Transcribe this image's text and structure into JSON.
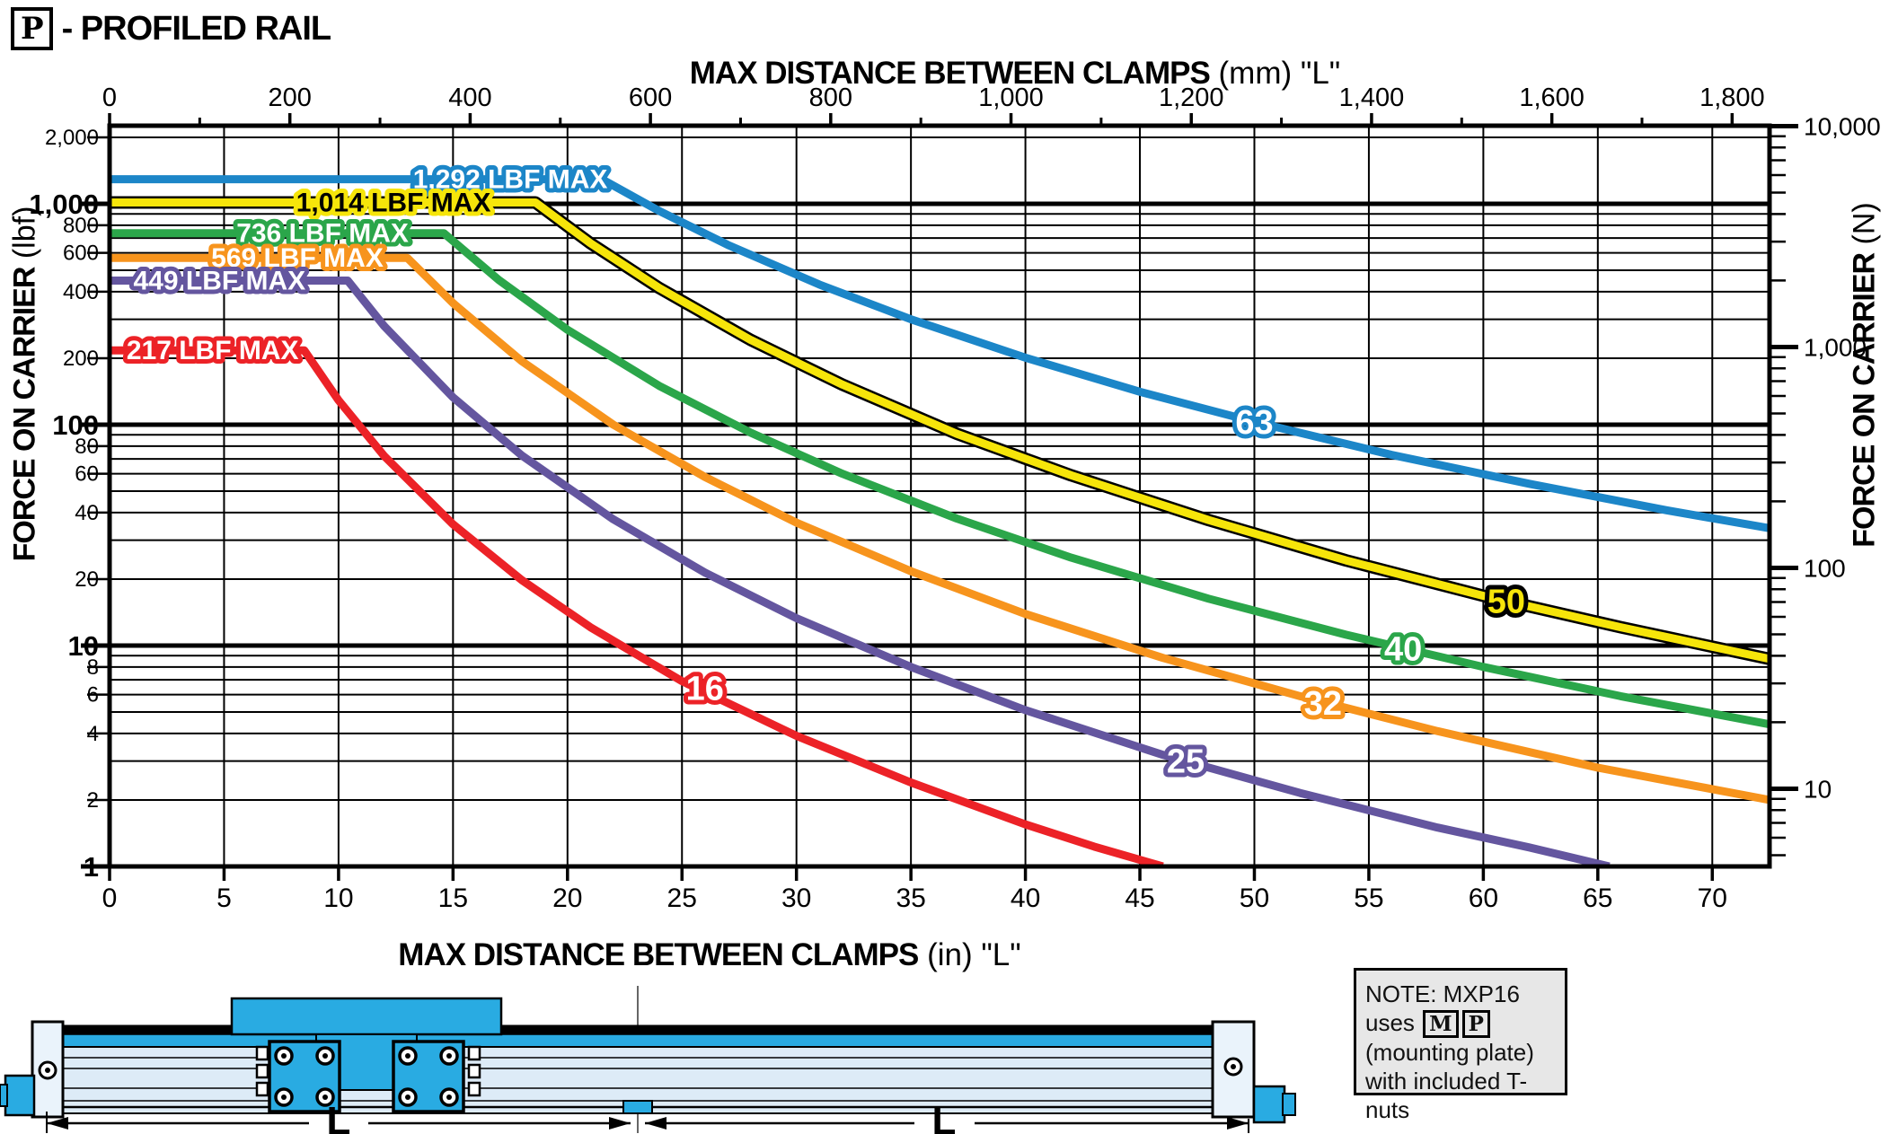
{
  "page_title": {
    "boxed_letter": "P",
    "text": "- PROFILED RAIL"
  },
  "axes": {
    "top": {
      "title_bold": "MAX DISTANCE BETWEEN CLAMPS",
      "title_unit": "(mm)",
      "title_quote": "\"L\"",
      "ticks": [
        {
          "mm": 0,
          "label": "0"
        },
        {
          "mm": 200,
          "label": "200"
        },
        {
          "mm": 400,
          "label": "400"
        },
        {
          "mm": 600,
          "label": "600"
        },
        {
          "mm": 800,
          "label": "800"
        },
        {
          "mm": 1000,
          "label": "1,000"
        },
        {
          "mm": 1200,
          "label": "1,200"
        },
        {
          "mm": 1400,
          "label": "1,400"
        },
        {
          "mm": 1600,
          "label": "1,600"
        },
        {
          "mm": 1800,
          "label": "1,800"
        }
      ],
      "minor_mm": [
        100,
        300,
        500,
        700,
        900,
        1100,
        1300,
        1500,
        1700
      ]
    },
    "bottom": {
      "title_bold": "MAX DISTANCE BETWEEN CLAMPS",
      "title_unit": "(in)",
      "title_quote": "\"L\"",
      "ticks": [
        {
          "in": 0,
          "label": "0"
        },
        {
          "in": 5,
          "label": "5"
        },
        {
          "in": 10,
          "label": "10"
        },
        {
          "in": 15,
          "label": "15"
        },
        {
          "in": 20,
          "label": "20"
        },
        {
          "in": 25,
          "label": "25"
        },
        {
          "in": 30,
          "label": "30"
        },
        {
          "in": 35,
          "label": "35"
        },
        {
          "in": 40,
          "label": "40"
        },
        {
          "in": 45,
          "label": "45"
        },
        {
          "in": 50,
          "label": "50"
        },
        {
          "in": 55,
          "label": "55"
        },
        {
          "in": 60,
          "label": "60"
        },
        {
          "in": 65,
          "label": "65"
        },
        {
          "in": 70,
          "label": "70"
        }
      ]
    },
    "left": {
      "title_bold": "FORCE ON CARRIER",
      "title_unit": "(lbf)",
      "ticks": [
        {
          "v": 2000,
          "label": "2,000",
          "major": false
        },
        {
          "v": 1000,
          "label": "1,000",
          "major": true
        },
        {
          "v": 800,
          "label": "800",
          "major": false
        },
        {
          "v": 600,
          "label": "600",
          "major": false
        },
        {
          "v": 400,
          "label": "400",
          "major": false
        },
        {
          "v": 200,
          "label": "200",
          "major": false
        },
        {
          "v": 100,
          "label": "100",
          "major": true
        },
        {
          "v": 80,
          "label": "80",
          "major": false
        },
        {
          "v": 60,
          "label": "60",
          "major": false
        },
        {
          "v": 40,
          "label": "40",
          "major": false
        },
        {
          "v": 20,
          "label": "20",
          "major": false
        },
        {
          "v": 10,
          "label": "10",
          "major": true
        },
        {
          "v": 8,
          "label": "8",
          "major": false
        },
        {
          "v": 6,
          "label": "6",
          "major": false
        },
        {
          "v": 4,
          "label": "4",
          "major": false
        },
        {
          "v": 2,
          "label": "2",
          "major": false
        },
        {
          "v": 1,
          "label": "1",
          "major": true
        }
      ],
      "minor_grid": [
        3,
        5,
        7,
        9,
        30,
        50,
        70,
        90,
        300,
        500,
        700,
        900
      ]
    },
    "right": {
      "title_bold": "FORCE ON CARRIER",
      "title_unit": "(N)",
      "ticks": [
        {
          "v": 10000,
          "label": "10,000"
        },
        {
          "v": 1000,
          "label": "1,000"
        },
        {
          "v": 100,
          "label": "100"
        },
        {
          "v": 10,
          "label": "10"
        }
      ],
      "minor": [
        5,
        6,
        7,
        8,
        9,
        20,
        30,
        40,
        50,
        60,
        70,
        80,
        90,
        200,
        300,
        400,
        500,
        600,
        700,
        800,
        900,
        2000,
        3000,
        4000,
        5000,
        6000,
        7000,
        8000,
        9000
      ]
    }
  },
  "chart_data": {
    "type": "line",
    "title": "P - PROFILED RAIL force vs max distance between clamps",
    "xlabel": "MAX DISTANCE BETWEEN CLAMPS (in) \"L\"",
    "ylabel": "FORCE ON CARRIER (lbf)",
    "x_range_in": [
      0,
      72.5
    ],
    "x_range_mm": [
      0,
      1841
    ],
    "y_scale": "log",
    "y_range_lbf": [
      1,
      2248
    ],
    "y_range_N": [
      4.45,
      10000
    ],
    "grid": "on",
    "series": [
      {
        "name": "63",
        "color": "#1C86C8",
        "max_lbf": 1292,
        "max_label": "1,292 LBF MAX",
        "max_label_x_in": 17.5,
        "label_x_in": 50,
        "label_y_lbf": 103,
        "label_fill": "#ffffff",
        "label_halo": "#1C86C8",
        "outline": false,
        "points": [
          [
            0,
            1292
          ],
          [
            21.5,
            1292
          ],
          [
            24,
            929
          ],
          [
            27,
            652
          ],
          [
            31,
            431
          ],
          [
            35,
            300
          ],
          [
            40,
            201
          ],
          [
            45,
            141
          ],
          [
            50,
            103
          ],
          [
            56,
            73
          ],
          [
            62,
            54
          ],
          [
            68,
            41
          ],
          [
            72.5,
            34
          ]
        ]
      },
      {
        "name": "50",
        "color": "#F6E50A",
        "max_lbf": 1014,
        "max_label": "1,014 LBF MAX",
        "max_label_x_in": 12.4,
        "label_x_in": 61,
        "label_y_lbf": 15.9,
        "label_fill": "#F6E50A",
        "label_halo": "#000000",
        "outline": true,
        "max_label_fill": "#000000",
        "points": [
          [
            0,
            1014
          ],
          [
            18.6,
            1014
          ],
          [
            21,
            663
          ],
          [
            24,
            416
          ],
          [
            28,
            242
          ],
          [
            32,
            152
          ],
          [
            37,
            91
          ],
          [
            42,
            59
          ],
          [
            48,
            37
          ],
          [
            54,
            24.3
          ],
          [
            60,
            16.8
          ],
          [
            66,
            12.1
          ],
          [
            72.5,
            8.7
          ]
        ]
      },
      {
        "name": "40",
        "color": "#2BA64A",
        "max_lbf": 736,
        "max_label": "736 LBF MAX",
        "max_label_x_in": 9.3,
        "label_x_in": 56.5,
        "label_y_lbf": 9.7,
        "label_fill": "#ffffff",
        "label_halo": "#2BA64A",
        "outline": false,
        "points": [
          [
            0,
            736
          ],
          [
            14.6,
            736
          ],
          [
            17,
            452
          ],
          [
            20,
            269
          ],
          [
            24,
            150
          ],
          [
            28,
            92
          ],
          [
            32,
            60
          ],
          [
            37,
            37.6
          ],
          [
            42,
            25
          ],
          [
            48,
            16.3
          ],
          [
            54,
            11.2
          ],
          [
            60,
            8.0
          ],
          [
            66,
            5.9
          ],
          [
            72.5,
            4.4
          ]
        ]
      },
      {
        "name": "32",
        "color": "#F7941D",
        "max_lbf": 569,
        "max_label": "569 LBF MAX",
        "max_label_x_in": 8.2,
        "label_x_in": 53,
        "label_y_lbf": 5.5,
        "label_fill": "#ffffff",
        "label_halo": "#F7941D",
        "outline": false,
        "points": [
          [
            0,
            569
          ],
          [
            13,
            569
          ],
          [
            15,
            355
          ],
          [
            18,
            194
          ],
          [
            22,
            100
          ],
          [
            26,
            58
          ],
          [
            30,
            36
          ],
          [
            35,
            21.7
          ],
          [
            40,
            13.9
          ],
          [
            46,
            8.8
          ],
          [
            52,
            5.9
          ],
          [
            58,
            4.1
          ],
          [
            65,
            2.8
          ],
          [
            72.5,
            2.0
          ]
        ]
      },
      {
        "name": "25",
        "color": "#64569F",
        "max_lbf": 449,
        "max_label": "449 LBF MAX",
        "max_label_x_in": 4.8,
        "label_x_in": 47,
        "label_y_lbf": 3.0,
        "label_fill": "#ffffff",
        "label_halo": "#64569F",
        "outline": false,
        "points": [
          [
            0,
            449
          ],
          [
            10.4,
            449
          ],
          [
            12,
            279
          ],
          [
            15,
            133
          ],
          [
            18,
            72.6
          ],
          [
            22,
            37.3
          ],
          [
            26,
            21.4
          ],
          [
            30,
            13.3
          ],
          [
            35,
            8.0
          ],
          [
            40,
            5.1
          ],
          [
            46,
            3.2
          ],
          [
            52,
            2.15
          ],
          [
            58,
            1.5
          ],
          [
            62,
            1.22
          ],
          [
            65.5,
            1.0
          ]
        ]
      },
      {
        "name": "16",
        "color": "#EC2227",
        "max_lbf": 217,
        "max_label": "217 LBF MAX",
        "max_label_x_in": 4.5,
        "label_x_in": 26,
        "label_y_lbf": 6.4,
        "label_fill": "#ffffff",
        "label_halo": "#EC2227",
        "outline": false,
        "points": [
          [
            0,
            217
          ],
          [
            8.5,
            217
          ],
          [
            10,
            129
          ],
          [
            12,
            72
          ],
          [
            15,
            35.4
          ],
          [
            18,
            19.8
          ],
          [
            21,
            12.1
          ],
          [
            25,
            6.9
          ],
          [
            30,
            3.9
          ],
          [
            35,
            2.4
          ],
          [
            40,
            1.55
          ],
          [
            43,
            1.23
          ],
          [
            46,
            1.0
          ]
        ]
      }
    ]
  },
  "note_box": {
    "line1": "NOTE: MXP16",
    "uses_word": "uses",
    "boxed": [
      "M",
      "P"
    ],
    "line3": "(mounting plate)",
    "line4": "with included T-nuts"
  },
  "illustration": {
    "dim_labels": [
      "L",
      "L"
    ],
    "body_color": "#DDEBF7",
    "accent_color": "#29ABE2"
  }
}
